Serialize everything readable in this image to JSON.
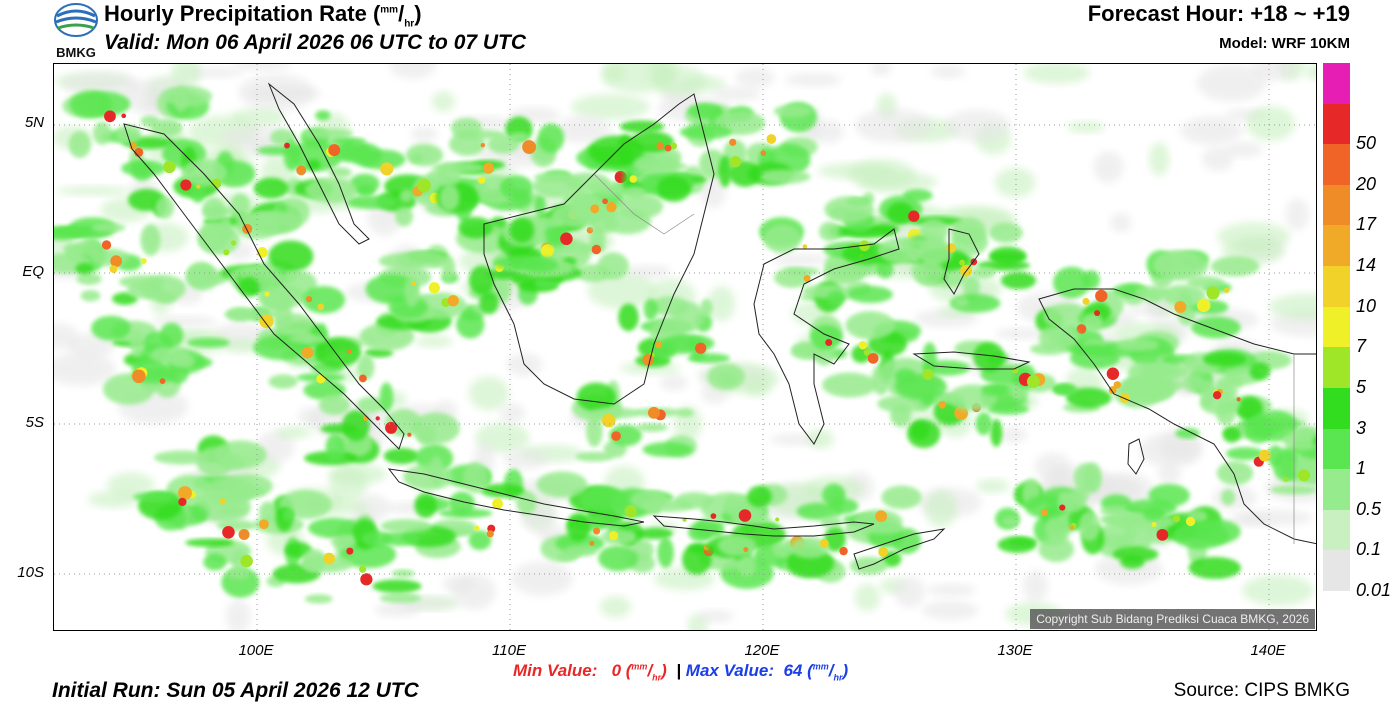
{
  "header": {
    "logo_text": "BMKG",
    "title": "Hourly Precipitation Rate (",
    "title_unit_num": "mm",
    "title_unit_den": "hr",
    "title_close": ")",
    "valid": "Valid: Mon 06 April 2026 06 UTC to 07 UTC",
    "forecast_hour": "Forecast Hour: +18 ~ +19",
    "model": "Model: WRF 10KM"
  },
  "map": {
    "copyright": "Copyright Sub Bidang Prediksi Cuaca BMKG, 2026",
    "lat_labels": [
      "5N",
      "EQ",
      "5S",
      "10S"
    ],
    "lon_labels": [
      "100E",
      "110E",
      "120E",
      "130E",
      "140E"
    ]
  },
  "colorbar": {
    "levels": [
      "0.01",
      "0.1",
      "0.5",
      "1",
      "3",
      "5",
      "7",
      "10",
      "14",
      "17",
      "20",
      "50"
    ],
    "colors": [
      "#e6e6e6",
      "#c8f0c0",
      "#96eb8c",
      "#5ae650",
      "#32dc1e",
      "#a0e628",
      "#f0f028",
      "#f0d228",
      "#f0aa28",
      "#f08c28",
      "#f06428",
      "#e62828",
      "#e61eb4"
    ]
  },
  "footer": {
    "min_label": "Min Value:",
    "min_value": "0",
    "max_label": "Max Value:",
    "max_value": "64",
    "unit_num": "mm",
    "unit_den": "hr",
    "separator": "|",
    "initial_run": "Initial Run: Sun 05 April 2026 12 UTC",
    "source": "Source: CIPS BMKG"
  }
}
